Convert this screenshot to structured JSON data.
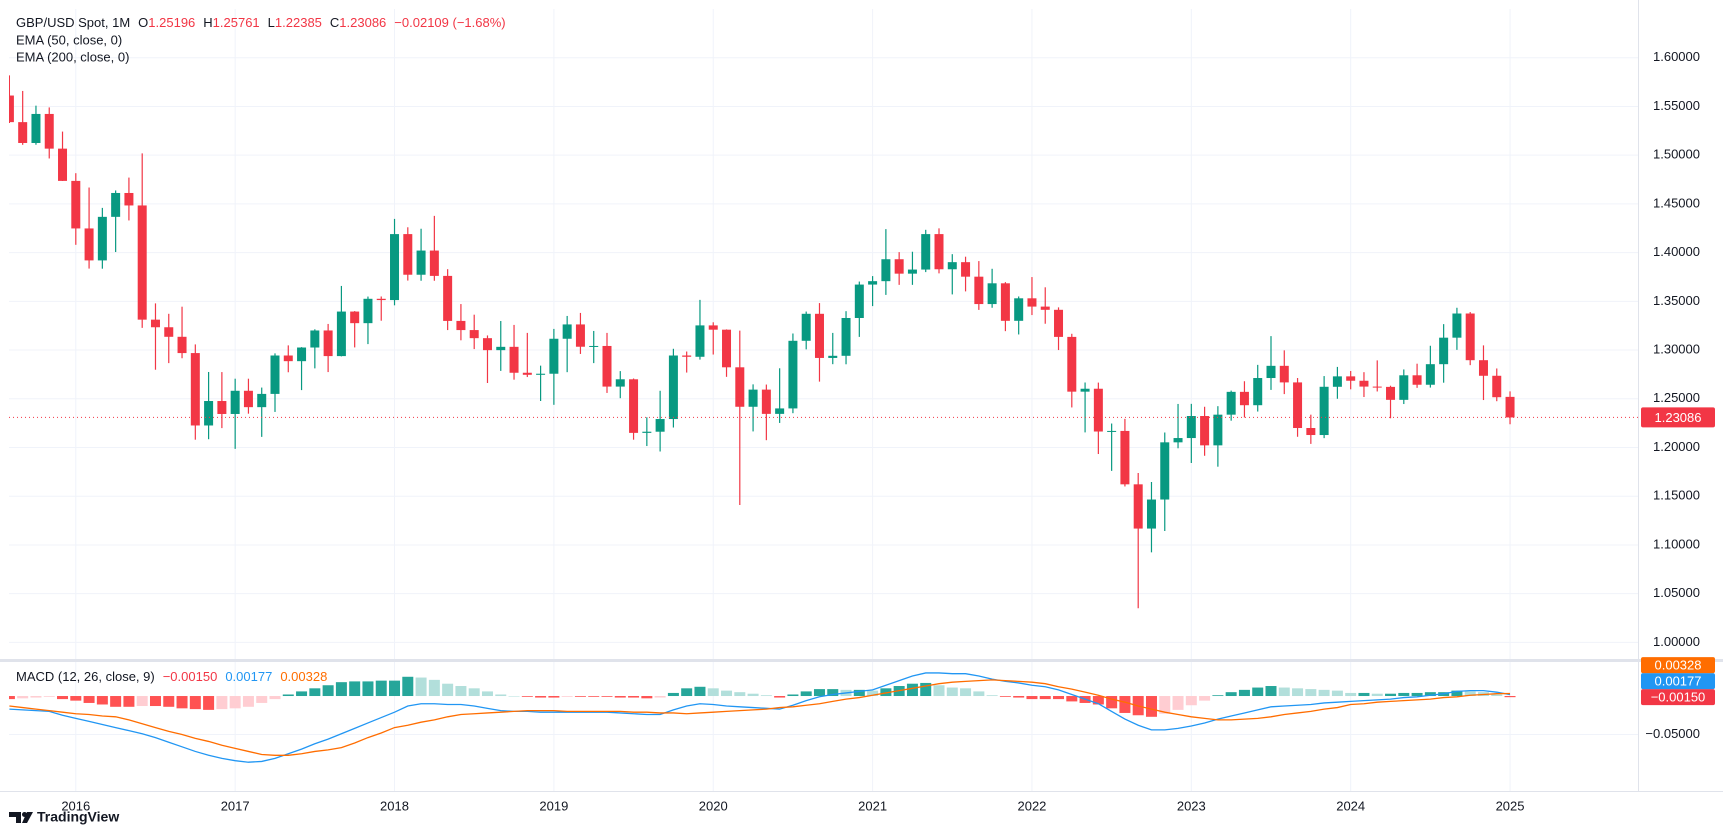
{
  "chart_data": [
    {
      "type": "candlestick",
      "title": "GBP/USD Spot, 1M",
      "ohlc_legend": [
        {
          "label": "O",
          "value": "1.25196"
        },
        {
          "label": "H",
          "value": "1.25761"
        },
        {
          "label": "L",
          "value": "1.22385"
        },
        {
          "label": "C",
          "value": "1.23086"
        }
      ],
      "change_label": "−0.02109 (−1.68%)",
      "indicators": [
        "EMA (50, close, 0)",
        "EMA (200, close, 0)"
      ],
      "last_price_label": "1.23086",
      "categories": [
        null,
        null,
        null,
        null,
        null,
        "2016",
        null,
        null,
        null,
        null,
        null,
        null,
        null,
        null,
        null,
        null,
        null,
        "2017",
        null,
        null,
        null,
        null,
        null,
        null,
        null,
        null,
        null,
        null,
        null,
        "2018",
        null,
        null,
        null,
        null,
        null,
        null,
        null,
        null,
        null,
        null,
        null,
        "2019",
        null,
        null,
        null,
        null,
        null,
        null,
        null,
        null,
        null,
        null,
        null,
        "2020",
        null,
        null,
        null,
        null,
        null,
        null,
        null,
        null,
        null,
        null,
        null,
        "2021",
        null,
        null,
        null,
        null,
        null,
        null,
        null,
        null,
        null,
        null,
        null,
        "2022",
        null,
        null,
        null,
        null,
        null,
        null,
        null,
        null,
        null,
        null,
        null,
        "2023",
        null,
        null,
        null,
        null,
        null,
        null,
        null,
        null,
        null,
        null,
        null,
        "2024",
        null,
        null,
        null,
        null,
        null,
        null,
        null,
        null,
        null,
        null,
        null,
        "2025"
      ],
      "open": [
        1.5612,
        1.5339,
        1.5125,
        1.5423,
        1.5067,
        1.4736,
        1.4248,
        1.392,
        1.4367,
        1.4612,
        1.4484,
        1.3312,
        1.3234,
        1.3136,
        1.2969,
        1.2226,
        1.2477,
        1.2344,
        1.2582,
        1.2414,
        1.255,
        1.2944,
        1.2886,
        1.3026,
        1.3201,
        1.2938,
        1.3395,
        1.3276,
        1.3526,
        1.3513,
        1.419,
        1.3773,
        1.4021,
        1.3761,
        1.3299,
        1.3205,
        1.3122,
        1.2999,
        1.3033,
        1.2767,
        1.2746,
        1.2757,
        1.3116,
        1.3263,
        1.3034,
        1.3042,
        1.2625,
        1.27,
        1.215,
        1.2162,
        1.2292,
        1.2944,
        1.2931,
        1.3253,
        1.3209,
        1.2823,
        1.2418,
        1.2594,
        1.2345,
        1.2401,
        1.3095,
        1.3372,
        1.2919,
        1.2941,
        1.3329,
        1.3672,
        1.3707,
        1.3932,
        1.3784,
        1.3826,
        1.419,
        1.3829,
        1.3902,
        1.3753,
        1.3472,
        1.3685,
        1.33,
        1.3531,
        1.3446,
        1.3413,
        1.3135,
        1.2573,
        1.2603,
        1.2164,
        1.217,
        1.1622,
        1.1168,
        1.1466,
        1.2053,
        1.2097,
        1.2323,
        1.2022,
        1.2337,
        1.2571,
        1.2434,
        1.2713,
        1.2838,
        1.2668,
        1.22,
        1.2128,
        1.2623,
        1.273,
        1.2685,
        1.2625,
        1.2622,
        1.2489,
        1.2741,
        1.2644,
        1.2855,
        1.3127,
        1.3375,
        1.2896,
        1.2736,
        1.25196
      ],
      "high": [
        1.5819,
        1.5659,
        1.5508,
        1.549,
        1.5242,
        1.4815,
        1.4668,
        1.4459,
        1.4638,
        1.477,
        1.5018,
        1.3479,
        1.3372,
        1.3445,
        1.3058,
        1.2775,
        1.2774,
        1.2706,
        1.2706,
        1.2615,
        1.2966,
        1.3048,
        1.303,
        1.3213,
        1.3268,
        1.3658,
        1.34,
        1.3549,
        1.355,
        1.4346,
        1.426,
        1.4245,
        1.4377,
        1.383,
        1.3472,
        1.3363,
        1.315,
        1.3298,
        1.3258,
        1.3176,
        1.284,
        1.3217,
        1.335,
        1.3381,
        1.3196,
        1.3176,
        1.2784,
        1.2708,
        1.231,
        1.2582,
        1.3013,
        1.2985,
        1.3515,
        1.3285,
        1.3212,
        1.32,
        1.2648,
        1.2646,
        1.2813,
        1.317,
        1.3395,
        1.3482,
        1.3176,
        1.3399,
        1.3703,
        1.3759,
        1.4241,
        1.4005,
        1.4009,
        1.4234,
        1.4249,
        1.3984,
        1.3958,
        1.3913,
        1.3834,
        1.3697,
        1.355,
        1.3749,
        1.3644,
        1.3438,
        1.3167,
        1.2667,
        1.2666,
        1.2246,
        1.2294,
        1.1738,
        1.1646,
        1.2154,
        1.2447,
        1.2448,
        1.2418,
        1.2424,
        1.2584,
        1.268,
        1.2848,
        1.3143,
        1.2997,
        1.2713,
        1.2337,
        1.2733,
        1.2827,
        1.2785,
        1.2773,
        1.2894,
        1.2634,
        1.2801,
        1.286,
        1.3044,
        1.3266,
        1.3434,
        1.339,
        1.3048,
        1.2811,
        1.25761
      ],
      "low": [
        1.533,
        1.5106,
        1.5107,
        1.4966,
        1.4735,
        1.408,
        1.3836,
        1.3835,
        1.4006,
        1.433,
        1.3228,
        1.2798,
        1.2866,
        1.2916,
        1.208,
        1.2085,
        1.2199,
        1.1986,
        1.2347,
        1.2109,
        1.2365,
        1.2772,
        1.2589,
        1.2812,
        1.2774,
        1.2935,
        1.3027,
        1.3061,
        1.3301,
        1.3459,
        1.3713,
        1.3711,
        1.3711,
        1.3205,
        1.31,
        1.301,
        1.2662,
        1.2786,
        1.2696,
        1.2723,
        1.2477,
        1.2438,
        1.2773,
        1.296,
        1.2866,
        1.256,
        1.2506,
        1.208,
        1.2015,
        1.1959,
        1.2205,
        1.2769,
        1.2902,
        1.2954,
        1.2725,
        1.141,
        1.2165,
        1.2075,
        1.2252,
        1.2352,
        1.3007,
        1.2676,
        1.2855,
        1.2854,
        1.3135,
        1.3451,
        1.3566,
        1.3669,
        1.3669,
        1.38,
        1.3787,
        1.3571,
        1.3602,
        1.3412,
        1.3434,
        1.3194,
        1.316,
        1.3359,
        1.327,
        1.3,
        1.2411,
        1.2155,
        1.1933,
        1.176,
        1.16,
        1.035,
        1.0924,
        1.1143,
        1.1992,
        1.1841,
        1.1915,
        1.1803,
        1.2275,
        1.2308,
        1.2369,
        1.2591,
        1.2548,
        1.211,
        1.2037,
        1.2096,
        1.25,
        1.2597,
        1.2518,
        1.2575,
        1.23,
        1.2446,
        1.2612,
        1.2615,
        1.2665,
        1.3002,
        1.2845,
        1.2487,
        1.2475,
        1.22385
      ],
      "close": [
        1.5339,
        1.5125,
        1.5423,
        1.5067,
        1.4736,
        1.4248,
        1.392,
        1.4367,
        1.4612,
        1.4484,
        1.3312,
        1.3234,
        1.3136,
        1.2969,
        1.2226,
        1.2477,
        1.2344,
        1.2582,
        1.2414,
        1.255,
        1.2944,
        1.2886,
        1.3026,
        1.3201,
        1.2938,
        1.3395,
        1.3276,
        1.3526,
        1.3513,
        1.419,
        1.3773,
        1.4021,
        1.3761,
        1.3299,
        1.3205,
        1.3122,
        1.2999,
        1.3033,
        1.2767,
        1.2746,
        1.2757,
        1.3116,
        1.3263,
        1.3034,
        1.3042,
        1.2625,
        1.27,
        1.215,
        1.2162,
        1.2292,
        1.2944,
        1.2931,
        1.3253,
        1.3209,
        1.2823,
        1.2418,
        1.2594,
        1.2345,
        1.2401,
        1.3095,
        1.3372,
        1.2919,
        1.2941,
        1.3329,
        1.3672,
        1.3707,
        1.3932,
        1.3784,
        1.3826,
        1.419,
        1.3829,
        1.3902,
        1.3753,
        1.3472,
        1.3685,
        1.33,
        1.3531,
        1.3446,
        1.3413,
        1.3135,
        1.2573,
        1.2603,
        1.2164,
        1.217,
        1.1622,
        1.1168,
        1.1466,
        1.2053,
        1.2097,
        1.2323,
        1.2022,
        1.2337,
        1.2571,
        1.2434,
        1.2713,
        1.2838,
        1.2668,
        1.22,
        1.2128,
        1.2623,
        1.273,
        1.2685,
        1.2625,
        1.2622,
        1.2489,
        1.2741,
        1.2644,
        1.2855,
        1.3127,
        1.3375,
        1.2896,
        1.2736,
        1.2516,
        1.23086
      ],
      "up_color": "#089981",
      "down_color": "#f23645",
      "ylim": [
        0.985,
        1.65
      ],
      "yticks": [
        {
          "value": 1.0,
          "label": "1.00000"
        },
        {
          "value": 1.05,
          "label": "1.05000"
        },
        {
          "value": 1.1,
          "label": "1.10000"
        },
        {
          "value": 1.15,
          "label": "1.15000"
        },
        {
          "value": 1.2,
          "label": "1.20000"
        },
        {
          "value": 1.25,
          "label": "1.25000"
        },
        {
          "value": 1.3,
          "label": "1.30000"
        },
        {
          "value": 1.35,
          "label": "1.35000"
        },
        {
          "value": 1.4,
          "label": "1.40000"
        },
        {
          "value": 1.45,
          "label": "1.45000"
        },
        {
          "value": 1.5,
          "label": "1.50000"
        },
        {
          "value": 1.55,
          "label": "1.55000"
        },
        {
          "value": 1.6,
          "label": "1.60000"
        }
      ],
      "grid": true
    },
    {
      "type": "macd",
      "title": "MACD (12, 26, close, 9)",
      "ylim": [
        -0.1234,
        0.0429
      ],
      "yticks": [
        {
          "value": -0.05,
          "label": "−0.05000"
        }
      ],
      "grid": true,
      "series": [
        {
          "style": "histogram",
          "label_color": "#f23645",
          "value_label": "−0.00150",
          "colors": {
            "rising_above": "#26a69a",
            "falling_above": "#b2dfdb",
            "rising_below": "#ffcdd2",
            "falling_below": "#ff5252"
          },
          "values": [
            -0.004,
            -0.003,
            -0.002,
            -0.001,
            -0.004,
            -0.006,
            -0.009,
            -0.011,
            -0.014,
            -0.014,
            -0.013,
            -0.013,
            -0.014,
            -0.016,
            -0.017,
            -0.018,
            -0.017,
            -0.016,
            -0.014,
            -0.009,
            -0.004,
            0.002,
            0.006,
            0.01,
            0.014,
            0.018,
            0.019,
            0.019,
            0.02,
            0.02,
            0.025,
            0.024,
            0.021,
            0.016,
            0.013,
            0.01,
            0.006,
            0.002,
            0.0,
            -0.001,
            -0.002,
            -0.002,
            -0.001,
            -0.001,
            -0.001,
            -0.001,
            -0.002,
            -0.002,
            -0.003,
            -0.002,
            0.004,
            0.01,
            0.012,
            0.01,
            0.007,
            0.005,
            0.003,
            0.001,
            -0.002,
            0.002,
            0.006,
            0.009,
            0.009,
            0.008,
            0.008,
            0.007,
            0.01,
            0.013,
            0.016,
            0.017,
            0.014,
            0.011,
            0.01,
            0.006,
            0.001,
            -0.001,
            -0.002,
            -0.004,
            -0.004,
            -0.004,
            -0.007,
            -0.009,
            -0.011,
            -0.016,
            -0.022,
            -0.025,
            -0.027,
            -0.023,
            -0.018,
            -0.012,
            -0.006,
            0.001,
            0.005,
            0.008,
            0.011,
            0.013,
            0.011,
            0.01,
            0.009,
            0.008,
            0.007,
            0.004,
            0.004,
            0.003,
            0.003,
            0.004,
            0.004,
            0.005,
            0.005,
            0.007,
            0.006,
            0.005,
            0.002,
            -0.0015
          ]
        },
        {
          "style": "line",
          "color": "#2196f3",
          "value_label": "0.00177",
          "values": [
            -0.017,
            -0.018,
            -0.019,
            -0.02,
            -0.025,
            -0.029,
            -0.033,
            -0.037,
            -0.041,
            -0.045,
            -0.049,
            -0.054,
            -0.06,
            -0.066,
            -0.072,
            -0.077,
            -0.081,
            -0.084,
            -0.086,
            -0.085,
            -0.081,
            -0.075,
            -0.069,
            -0.062,
            -0.056,
            -0.049,
            -0.042,
            -0.035,
            -0.028,
            -0.021,
            -0.013,
            -0.01,
            -0.01,
            -0.011,
            -0.011,
            -0.013,
            -0.016,
            -0.019,
            -0.02,
            -0.02,
            -0.021,
            -0.021,
            -0.021,
            -0.021,
            -0.021,
            -0.021,
            -0.022,
            -0.023,
            -0.024,
            -0.024,
            -0.018,
            -0.013,
            -0.01,
            -0.011,
            -0.013,
            -0.014,
            -0.015,
            -0.016,
            -0.017,
            -0.012,
            -0.006,
            -0.001,
            0.002,
            0.004,
            0.006,
            0.008,
            0.014,
            0.02,
            0.026,
            0.03,
            0.03,
            0.029,
            0.029,
            0.026,
            0.022,
            0.019,
            0.017,
            0.014,
            0.012,
            0.008,
            0.002,
            -0.004,
            -0.01,
            -0.02,
            -0.03,
            -0.038,
            -0.044,
            -0.044,
            -0.042,
            -0.039,
            -0.035,
            -0.03,
            -0.026,
            -0.022,
            -0.018,
            -0.014,
            -0.013,
            -0.012,
            -0.011,
            -0.009,
            -0.008,
            -0.007,
            -0.006,
            -0.005,
            -0.004,
            -0.002,
            -0.001,
            0.001,
            0.003,
            0.006,
            0.007,
            0.007,
            0.005,
            0.00177
          ]
        },
        {
          "style": "line",
          "color": "#ff6d00",
          "value_label": "0.00328",
          "values": [
            -0.013,
            -0.015,
            -0.017,
            -0.019,
            -0.021,
            -0.023,
            -0.024,
            -0.026,
            -0.027,
            -0.031,
            -0.036,
            -0.041,
            -0.046,
            -0.05,
            -0.055,
            -0.059,
            -0.064,
            -0.068,
            -0.072,
            -0.076,
            -0.077,
            -0.077,
            -0.075,
            -0.072,
            -0.07,
            -0.067,
            -0.061,
            -0.054,
            -0.048,
            -0.041,
            -0.038,
            -0.034,
            -0.031,
            -0.027,
            -0.024,
            -0.023,
            -0.022,
            -0.021,
            -0.02,
            -0.019,
            -0.019,
            -0.019,
            -0.02,
            -0.02,
            -0.02,
            -0.02,
            -0.02,
            -0.021,
            -0.021,
            -0.022,
            -0.022,
            -0.023,
            -0.022,
            -0.021,
            -0.02,
            -0.019,
            -0.018,
            -0.017,
            -0.015,
            -0.014,
            -0.012,
            -0.01,
            -0.007,
            -0.004,
            -0.002,
            0.001,
            0.004,
            0.007,
            0.01,
            0.013,
            0.016,
            0.018,
            0.019,
            0.02,
            0.021,
            0.02,
            0.019,
            0.018,
            0.016,
            0.012,
            0.009,
            0.005,
            0.001,
            -0.004,
            -0.008,
            -0.013,
            -0.017,
            -0.021,
            -0.024,
            -0.027,
            -0.029,
            -0.031,
            -0.031,
            -0.03,
            -0.029,
            -0.027,
            -0.024,
            -0.022,
            -0.02,
            -0.017,
            -0.015,
            -0.011,
            -0.01,
            -0.008,
            -0.007,
            -0.006,
            -0.005,
            -0.004,
            -0.002,
            -0.001,
            0.001,
            0.002,
            0.003,
            0.00328
          ]
        }
      ]
    }
  ],
  "footer": {
    "brand": "TradingView"
  }
}
